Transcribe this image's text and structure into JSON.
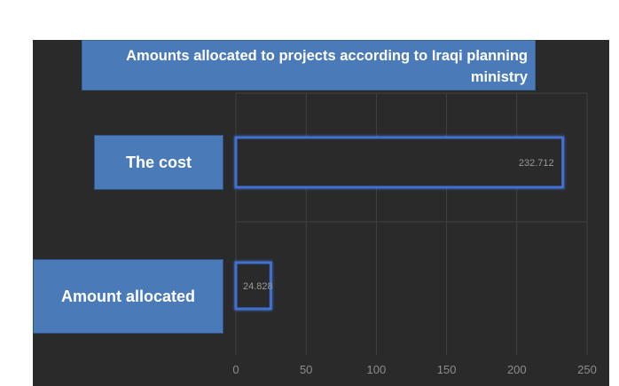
{
  "chart_data": {
    "type": "bar",
    "orientation": "horizontal",
    "title": "Amounts allocated to projects according to Iraqi planning ministry",
    "categories": [
      "The cost",
      "Amount allocated"
    ],
    "values": [
      232.712,
      24.828
    ],
    "value_labels": [
      "232.712",
      "24.828"
    ],
    "xlim": [
      0,
      250
    ],
    "x_ticks": [
      "0",
      "50",
      "100",
      "150",
      "200",
      "250"
    ],
    "grid": true,
    "colors": {
      "background": "#2a2a2a",
      "bar_fill": "#2b2b2b",
      "bar_edge": "#3f6fd0",
      "label_box": "#4a7ab8",
      "grid": "#404040",
      "tick_text": "#8c8c8c"
    }
  }
}
